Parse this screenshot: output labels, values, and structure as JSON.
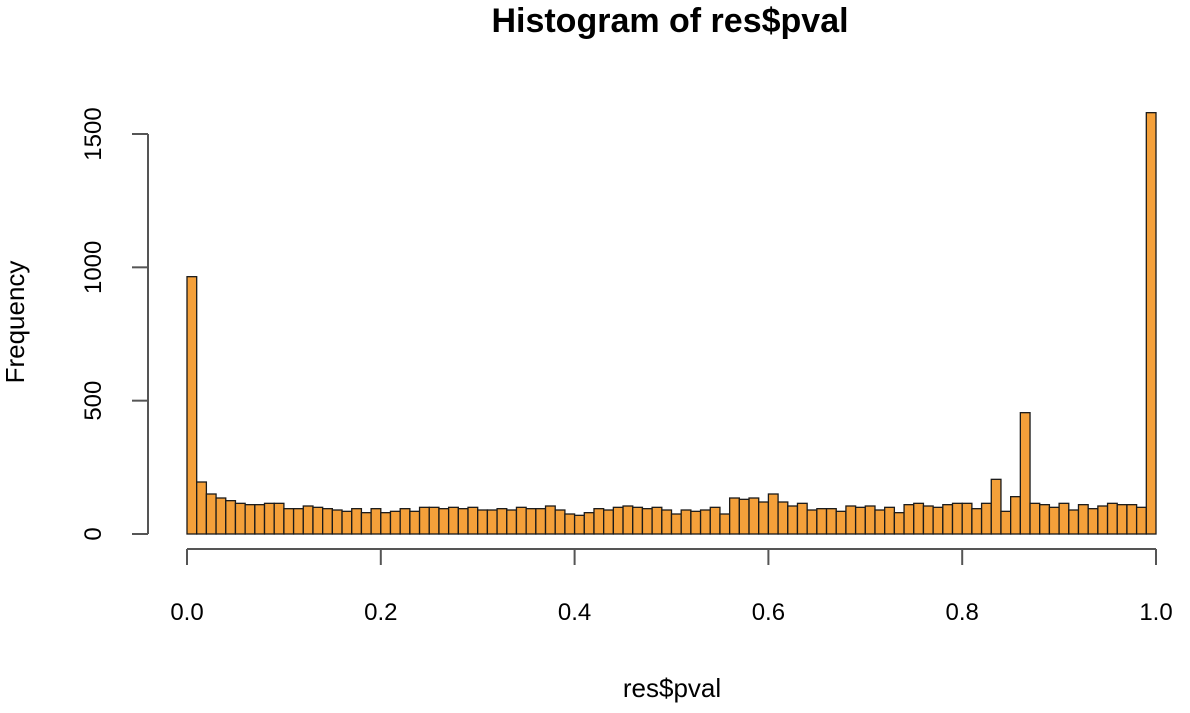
{
  "chart_data": {
    "type": "bar",
    "title": "Histogram of res$pval",
    "xlabel": "res$pval",
    "ylabel": "Frequency",
    "xlim": [
      0,
      1
    ],
    "ylim": [
      0,
      1600
    ],
    "bin_width": 0.01,
    "bar_color": "#F4A03A",
    "bar_border_color": "#1a1a1a",
    "grid": false,
    "x_ticks": [
      0.0,
      0.2,
      0.4,
      0.6,
      0.8,
      1.0
    ],
    "x_tick_labels": [
      "0.0",
      "0.2",
      "0.4",
      "0.6",
      "0.8",
      "1.0"
    ],
    "y_ticks": [
      0,
      500,
      1000,
      1500
    ],
    "y_tick_labels": [
      "0",
      "500",
      "1000",
      "1500"
    ],
    "values": [
      965,
      195,
      150,
      135,
      125,
      115,
      110,
      110,
      115,
      115,
      95,
      95,
      105,
      100,
      95,
      90,
      85,
      95,
      80,
      95,
      80,
      85,
      95,
      85,
      100,
      100,
      95,
      100,
      95,
      100,
      90,
      90,
      95,
      90,
      100,
      95,
      95,
      105,
      90,
      75,
      70,
      80,
      95,
      90,
      100,
      105,
      100,
      95,
      100,
      90,
      75,
      90,
      85,
      90,
      100,
      75,
      135,
      130,
      135,
      120,
      150,
      120,
      105,
      115,
      90,
      95,
      95,
      85,
      105,
      100,
      105,
      90,
      100,
      80,
      110,
      115,
      105,
      100,
      110,
      115,
      115,
      95,
      115,
      205,
      85,
      140,
      455,
      115,
      110,
      100,
      115,
      90,
      110,
      95,
      105,
      115,
      110,
      110,
      100,
      1580
    ]
  }
}
